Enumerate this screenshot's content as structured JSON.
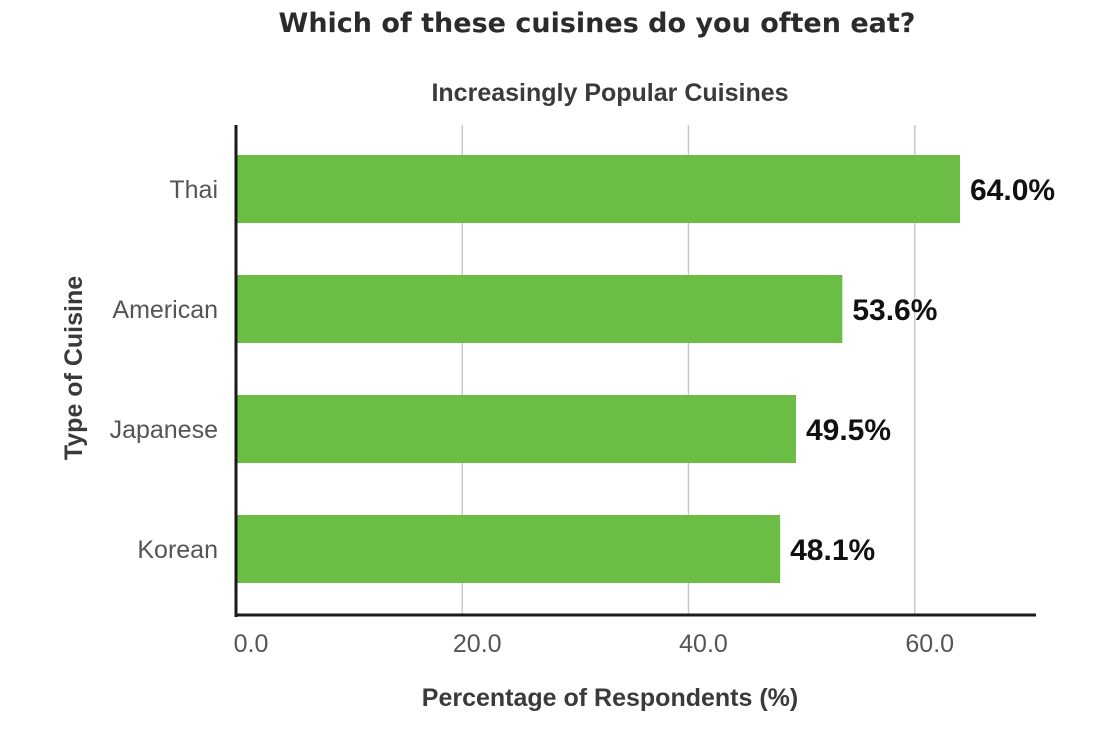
{
  "chart_data": {
    "type": "bar",
    "orientation": "horizontal",
    "title": "Which of these cuisines do you often eat?",
    "subtitle": "Increasingly Popular Cuisines",
    "xlabel": "Percentage of Respondents (%)",
    "ylabel": "Type of Cuisine",
    "categories": [
      "Thai",
      "American",
      "Japanese",
      "Korean"
    ],
    "values": [
      64.0,
      53.6,
      49.5,
      48.1
    ],
    "value_labels": [
      "64.0%",
      "53.6%",
      "49.5%",
      "48.1%"
    ],
    "x_ticks": [
      "0.0",
      "20.0",
      "40.0",
      "60.0"
    ],
    "x_tick_values": [
      0,
      20,
      40,
      60
    ],
    "xlim": [
      0,
      64.0
    ],
    "grid": true,
    "legend": "none",
    "bar_color": "#6cbd45",
    "grid_color": "#c8c8c8",
    "axis_color": "#1a1a1a"
  }
}
